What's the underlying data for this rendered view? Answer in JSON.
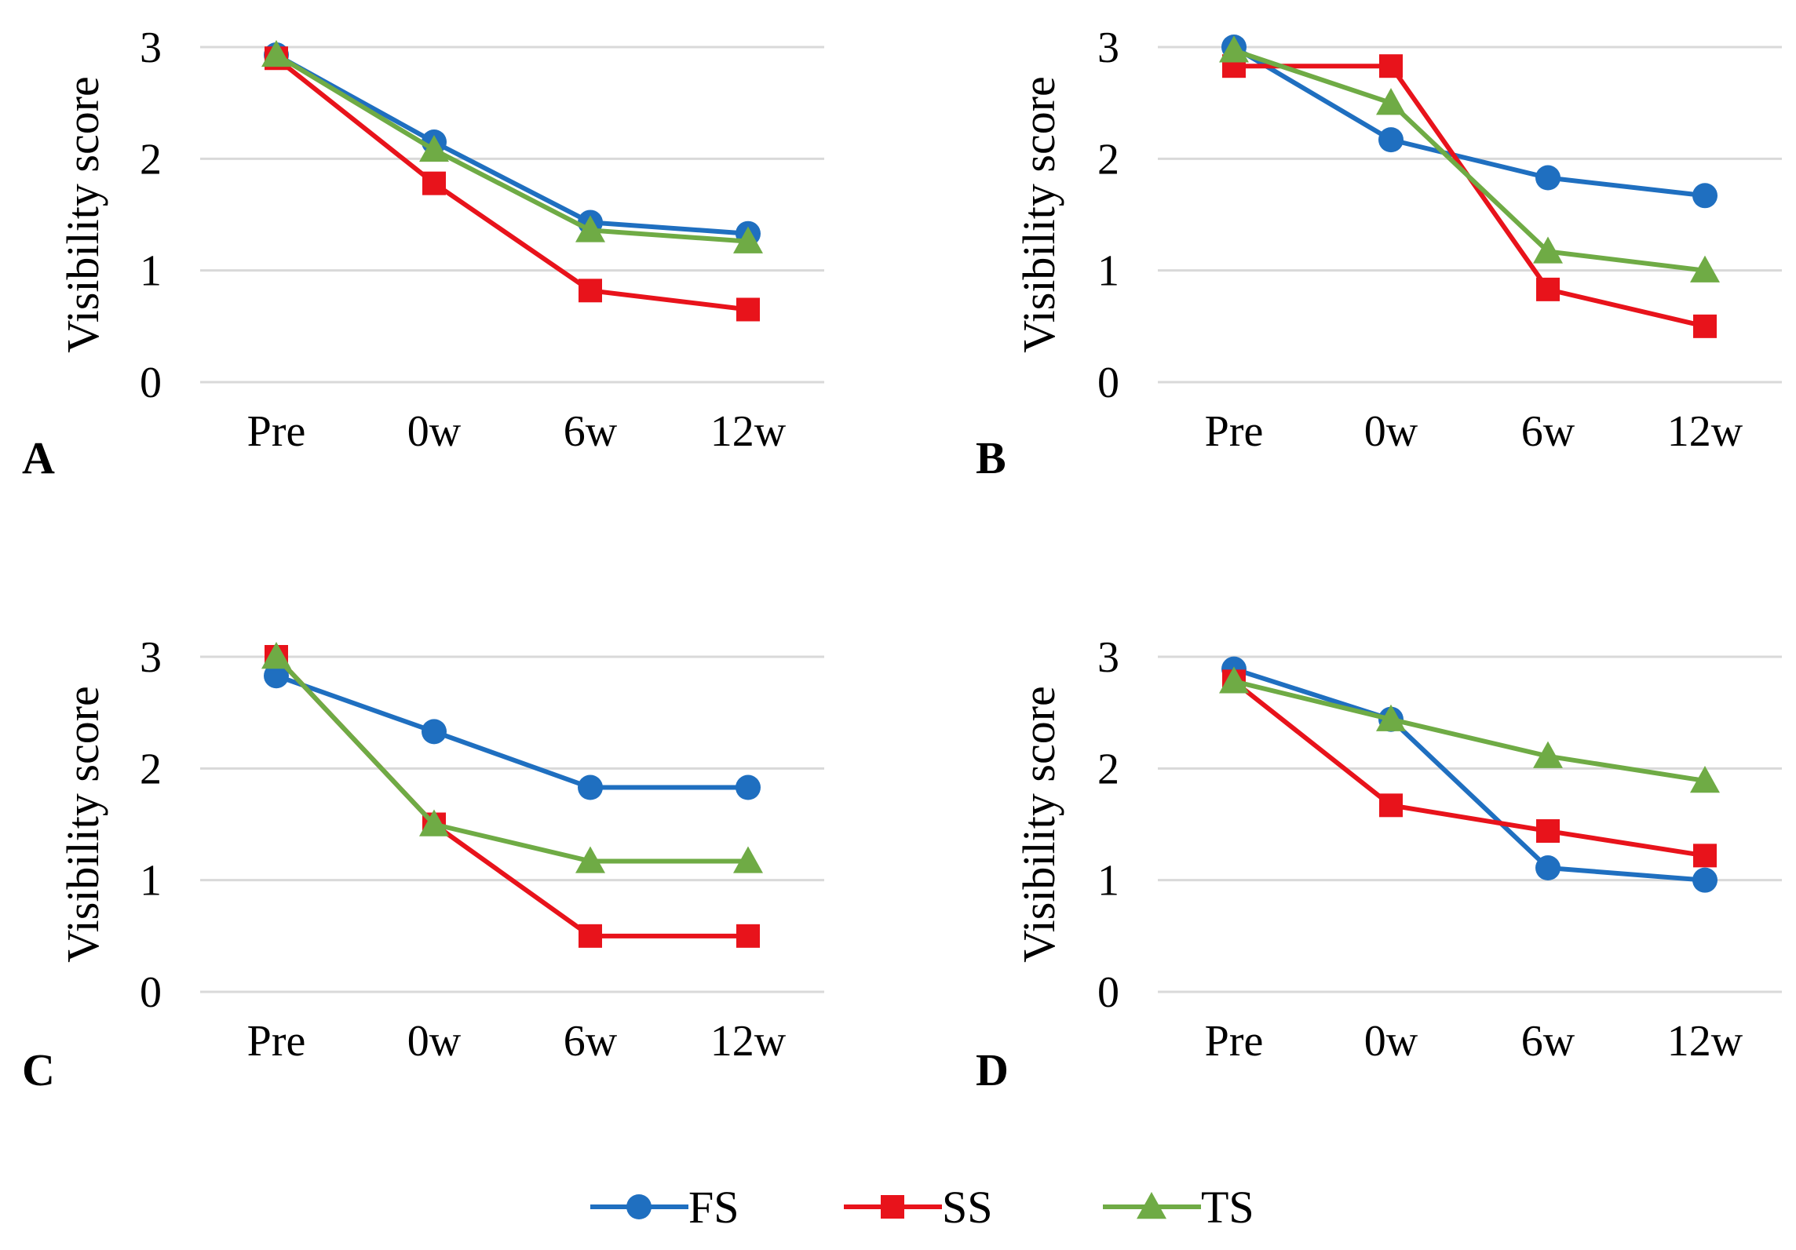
{
  "chart_data": [
    {
      "type": "line",
      "panel_label": "A",
      "categories": [
        "Pre",
        "0w",
        "6w",
        "12w"
      ],
      "ylabel": "Visibility score",
      "ylim": [
        0,
        3
      ],
      "yticks": [
        "0",
        "1",
        "2",
        "3"
      ],
      "grid": true,
      "series": [
        {
          "name": "FS",
          "values": [
            2.93,
            2.15,
            1.43,
            1.33
          ]
        },
        {
          "name": "SS",
          "values": [
            2.9,
            1.78,
            0.82,
            0.65
          ]
        },
        {
          "name": "TS",
          "values": [
            2.93,
            2.08,
            1.36,
            1.26
          ]
        }
      ]
    },
    {
      "type": "line",
      "panel_label": "B",
      "categories": [
        "Pre",
        "0w",
        "6w",
        "12w"
      ],
      "ylabel": "Visibility score",
      "ylim": [
        0,
        3
      ],
      "yticks": [
        "0",
        "1",
        "2",
        "3"
      ],
      "grid": true,
      "series": [
        {
          "name": "FS",
          "values": [
            3.0,
            2.17,
            1.83,
            1.67
          ]
        },
        {
          "name": "SS",
          "values": [
            2.83,
            2.83,
            0.83,
            0.5
          ]
        },
        {
          "name": "TS",
          "values": [
            2.97,
            2.5,
            1.17,
            1.0
          ]
        }
      ]
    },
    {
      "type": "line",
      "panel_label": "C",
      "categories": [
        "Pre",
        "0w",
        "6w",
        "12w"
      ],
      "ylabel": "Visibility score",
      "ylim": [
        0,
        3
      ],
      "yticks": [
        "0",
        "1",
        "2",
        "3"
      ],
      "grid": true,
      "series": [
        {
          "name": "FS",
          "values": [
            2.83,
            2.33,
            1.83,
            1.83
          ]
        },
        {
          "name": "SS",
          "values": [
            3.0,
            1.5,
            0.5,
            0.5
          ]
        },
        {
          "name": "TS",
          "values": [
            3.0,
            1.5,
            1.17,
            1.17
          ]
        }
      ]
    },
    {
      "type": "line",
      "panel_label": "D",
      "categories": [
        "Pre",
        "0w",
        "6w",
        "12w"
      ],
      "ylabel": "Visibility score",
      "ylim": [
        0,
        3
      ],
      "yticks": [
        "0",
        "1",
        "2",
        "3"
      ],
      "grid": true,
      "series": [
        {
          "name": "FS",
          "values": [
            2.89,
            2.44,
            1.11,
            1.0
          ]
        },
        {
          "name": "SS",
          "values": [
            2.78,
            1.67,
            1.44,
            1.22
          ]
        },
        {
          "name": "TS",
          "values": [
            2.78,
            2.44,
            2.11,
            1.89
          ]
        }
      ]
    }
  ],
  "legend": {
    "position": "bottom-center",
    "items": [
      {
        "name": "FS",
        "color": "#1f6fc0",
        "marker": "circle"
      },
      {
        "name": "SS",
        "color": "#e8131b",
        "marker": "square"
      },
      {
        "name": "TS",
        "color": "#6fab45",
        "marker": "triangle"
      }
    ]
  }
}
